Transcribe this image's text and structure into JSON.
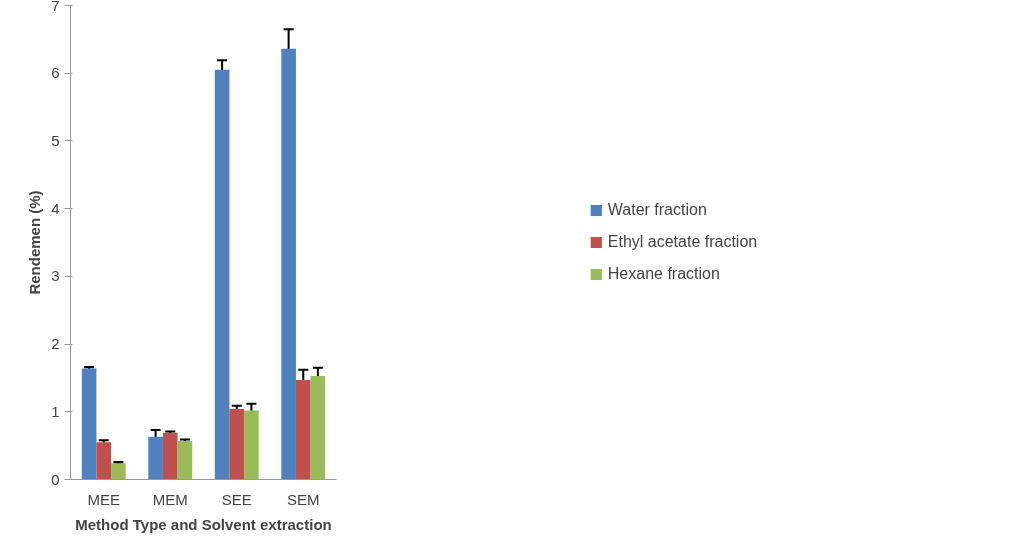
{
  "chart_data": {
    "type": "bar",
    "xlabel": "Method Type and Solvent extraction",
    "ylabel": "Rendemen (%)",
    "categories": [
      "MEE",
      "MEM",
      "SEE",
      "SEM"
    ],
    "series": [
      {
        "name": "Water fraction",
        "color": "#4f81bd",
        "values": [
          1.64,
          0.63,
          6.05,
          6.36
        ],
        "errors": [
          0.02,
          0.1,
          0.14,
          0.29
        ]
      },
      {
        "name": "Ethyl acetate fraction",
        "color": "#c0504d",
        "values": [
          0.55,
          0.69,
          1.04,
          1.47
        ],
        "errors": [
          0.03,
          0.02,
          0.05,
          0.15
        ]
      },
      {
        "name": "Hexane fraction",
        "color": "#9bbb59",
        "values": [
          0.24,
          0.57,
          1.02,
          1.53
        ],
        "errors": [
          0.02,
          0.02,
          0.1,
          0.12
        ]
      }
    ],
    "ylim": [
      0,
      7
    ],
    "yticks": [
      0,
      1,
      2,
      3,
      4,
      5,
      6,
      7
    ],
    "grid": false,
    "legend": "right"
  }
}
